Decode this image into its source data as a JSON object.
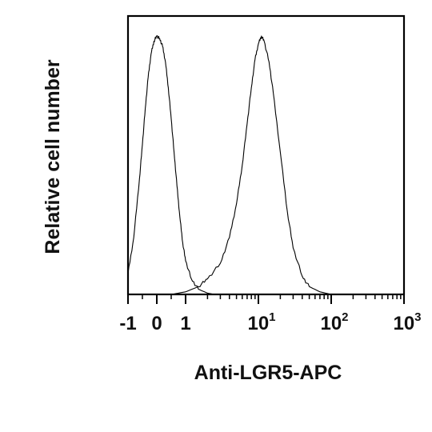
{
  "chart_data": {
    "type": "line",
    "title": "",
    "xlabel": "Anti-LGR5-APC",
    "ylabel": "Relative cell number",
    "x_scale": "biexponential",
    "xlim": [
      -1,
      1000
    ],
    "ylim": [
      0,
      1.0
    ],
    "x_tick_labels": [
      {
        "base": "-1",
        "exp": "",
        "value": -1
      },
      {
        "base": "0",
        "exp": "",
        "value": 0
      },
      {
        "base": "1",
        "exp": "",
        "value": 1
      },
      {
        "base": "10",
        "exp": "1",
        "value": 10
      },
      {
        "base": "10",
        "exp": "2",
        "value": 100
      },
      {
        "base": "10",
        "exp": "3",
        "value": 1000
      }
    ],
    "grid": false,
    "legend": "none",
    "series": [
      {
        "x": [
          -1,
          -0.8,
          -0.6,
          -0.5,
          -0.4,
          -0.3,
          -0.2,
          -0.1,
          0,
          0.1,
          0.2,
          0.3,
          0.4,
          0.5,
          0.6,
          0.7,
          0.8,
          0.9,
          1.0,
          1.2,
          1.5,
          2,
          2.5,
          3
        ],
        "values": [
          0.08,
          0.22,
          0.45,
          0.58,
          0.72,
          0.84,
          0.93,
          0.98,
          1.0,
          0.99,
          0.96,
          0.9,
          0.8,
          0.68,
          0.55,
          0.42,
          0.3,
          0.2,
          0.13,
          0.06,
          0.02,
          0.005,
          0.0,
          0.0
        ]
      },
      {
        "x": [
          0.5,
          1,
          1.5,
          2,
          3,
          4,
          5,
          6,
          7,
          8,
          9,
          10,
          11,
          12,
          14,
          16,
          20,
          25,
          30,
          40,
          50,
          70,
          100
        ],
        "values": [
          0.0,
          0.01,
          0.03,
          0.06,
          0.12,
          0.22,
          0.35,
          0.5,
          0.66,
          0.8,
          0.91,
          0.97,
          1.0,
          0.98,
          0.9,
          0.78,
          0.55,
          0.32,
          0.18,
          0.07,
          0.03,
          0.01,
          0.0
        ]
      }
    ]
  }
}
